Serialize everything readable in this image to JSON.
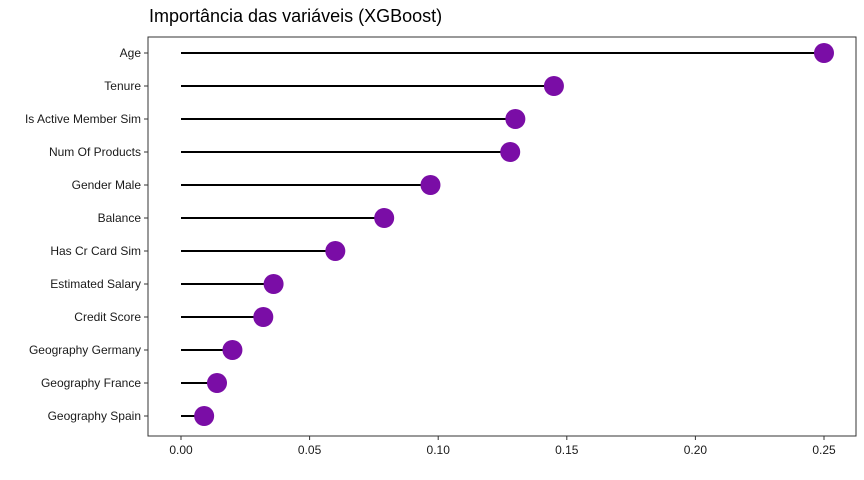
{
  "chart_data": {
    "type": "lollipop",
    "title": "Importância das variáveis (XGBoost)",
    "xlabel": "",
    "ylabel": "",
    "xlim": [
      -0.0125,
      0.2625
    ],
    "x_ticks": [
      "0.00",
      "0.05",
      "0.10",
      "0.15",
      "0.20",
      "0.25"
    ],
    "x_tick_values": [
      0,
      0.05,
      0.1,
      0.15,
      0.2,
      0.25
    ],
    "categories": [
      "Age",
      "Tenure",
      "Is Active Member Sim",
      "Num Of Products",
      "Gender Male",
      "Balance",
      "Has Cr Card Sim",
      "Estimated Salary",
      "Credit Score",
      "Geography Germany",
      "Geography France",
      "Geography Spain"
    ],
    "values": [
      0.25,
      0.145,
      0.13,
      0.128,
      0.097,
      0.079,
      0.06,
      0.036,
      0.032,
      0.02,
      0.014,
      0.009
    ],
    "grid": false,
    "legend": "none",
    "colors": {
      "point": "#7a0da6",
      "segment": "#000000",
      "axis": "#333333"
    }
  }
}
